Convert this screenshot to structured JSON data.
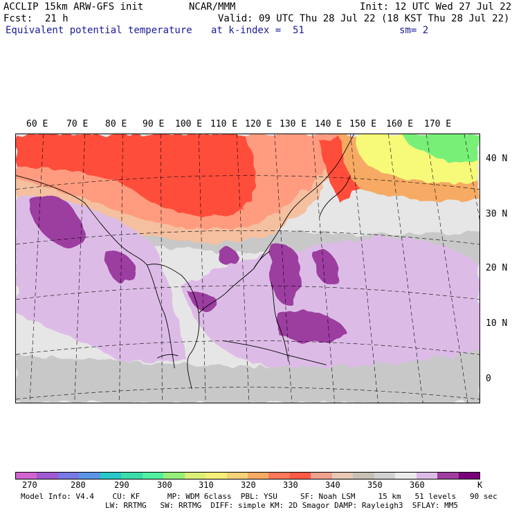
{
  "header": {
    "model": "ACCLIP 15km ARW-GFS init",
    "org": "NCAR/MMM",
    "init": "Init: 12 UTC Wed 27 Jul 22",
    "fcst_label": "Fcst:",
    "fcst_value": "21 h",
    "valid": "Valid: 09 UTC Thu 28 Jul 22 (18 KST Thu 28 Jul 22)",
    "field": "Equivalent potential temperature",
    "level": "at k-index =  51",
    "smooth": "sm= 2"
  },
  "map": {
    "lon_labels": [
      "60 E",
      "70 E",
      "80 E",
      "90 E",
      "100 E",
      "110 E",
      "120 E",
      "130 E",
      "140 E",
      "150 E",
      "160 E",
      "170 E"
    ],
    "lat_labels": [
      "40 N",
      "30 N",
      "20 N",
      "10 N",
      "0"
    ],
    "colors": {
      "hot_red": "#ff4d3a",
      "salmon": "#ff9c80",
      "peach": "#f4c0a0",
      "gray": "#c8c8c8",
      "light_gray": "#e6e6e6",
      "lavender": "#dcbce6",
      "purple": "#9c3ca0",
      "yellow": "#f6fa78",
      "green": "#78f078",
      "coast": "#000000"
    }
  },
  "colorbar": {
    "colors": [
      "#d264d2",
      "#a05ad2",
      "#7878e6",
      "#5a96e6",
      "#28c8c8",
      "#3cdcaa",
      "#50f0a0",
      "#96f078",
      "#dcf078",
      "#f6f078",
      "#f6d278",
      "#f6aa64",
      "#ff785a",
      "#ff5a46",
      "#f0a08c",
      "#e6c8b4",
      "#c8c0b4",
      "#d2d2d2",
      "#ebebeb",
      "#dcbce6",
      "#a03ca0",
      "#78007a"
    ],
    "labels": [
      "270",
      "280",
      "290",
      "300",
      "310",
      "320",
      "330",
      "340",
      "350",
      "360",
      "K"
    ]
  },
  "model_info": {
    "line1": "Model Info: V4.4    CU: KF      MP: WDM 6class  PBL: YSU     SF: Noah LSM     15 km   51 levels   90 sec",
    "line2": "LW: RRTMG   SW: RRTMG  DIFF: simple KM: 2D Smagor DAMP: Rayleigh3  SFLAY: MM5"
  }
}
